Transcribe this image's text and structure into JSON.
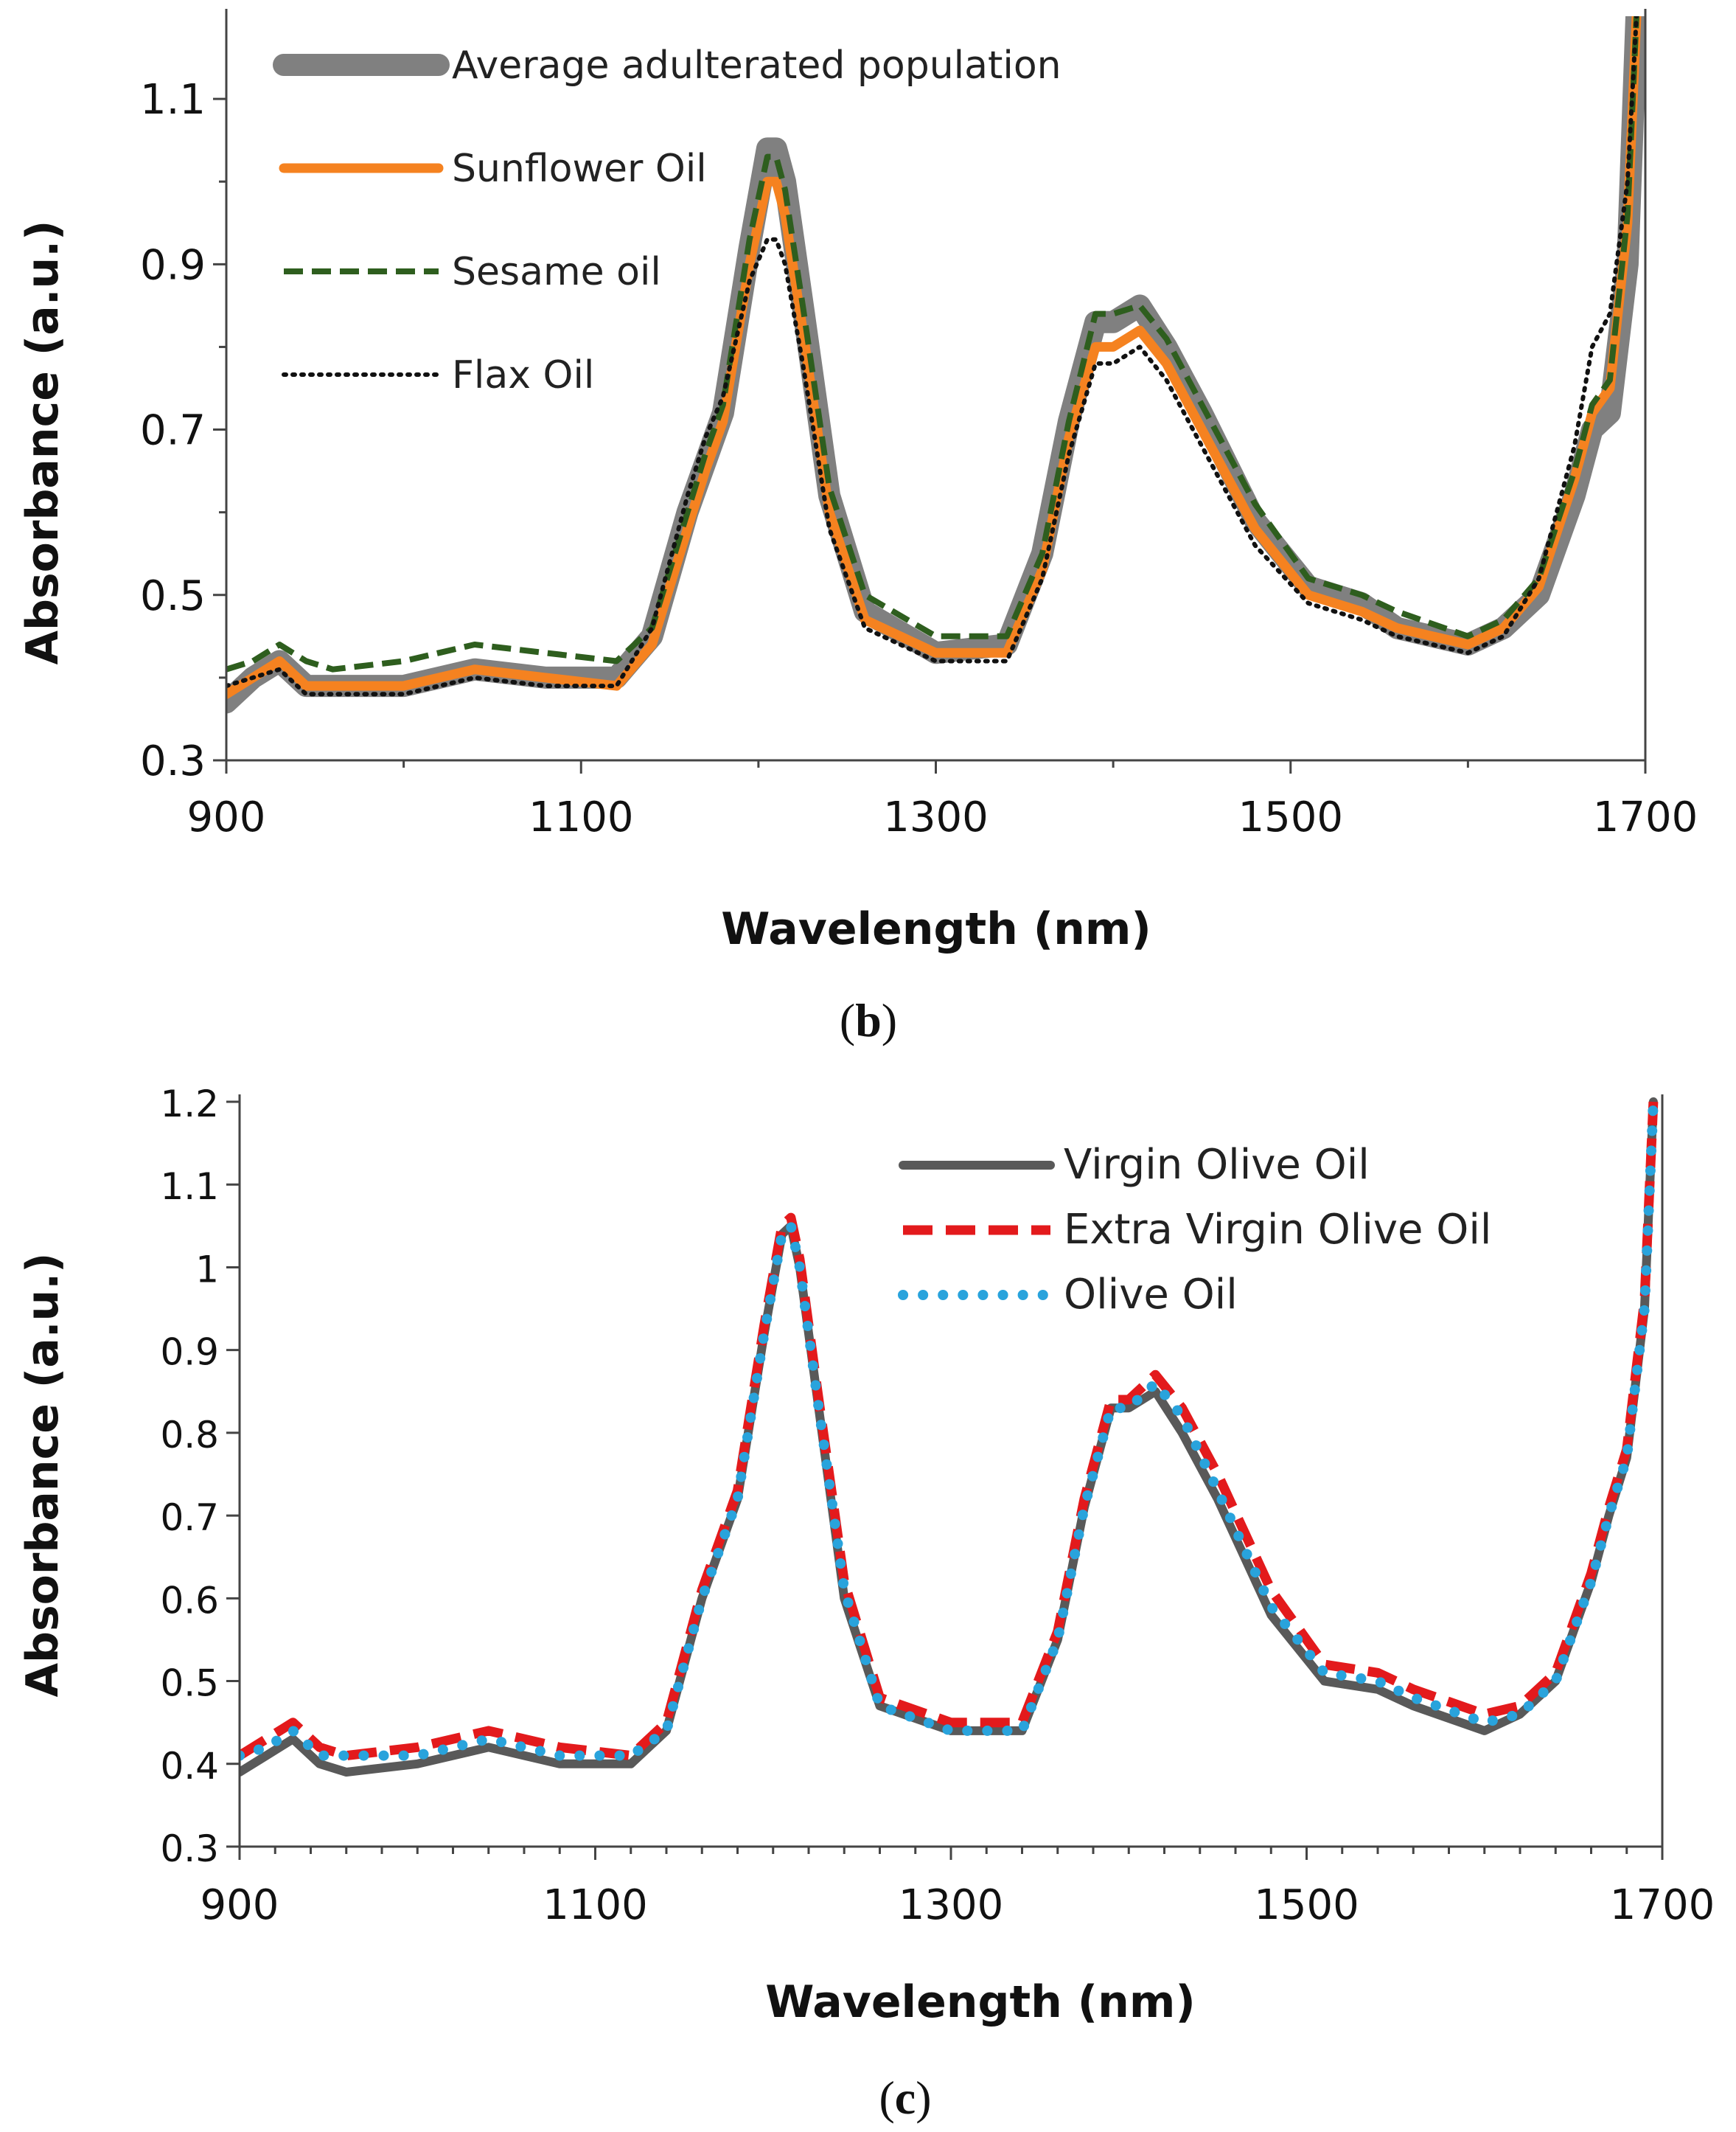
{
  "chart_data": [
    {
      "type": "line",
      "panel_label": "b",
      "xlabel": "Wavelength (nm)",
      "ylabel": "Absorbance (a.u.)",
      "xlim": [
        900,
        1700
      ],
      "ylim": [
        0.3,
        1.2
      ],
      "x_ticks": [
        900,
        1100,
        1300,
        1500,
        1700
      ],
      "y_ticks": [
        0.3,
        0.5,
        0.7,
        0.9,
        1.1
      ],
      "y_tick_labels": [
        "0.3",
        "0.5",
        "0.7",
        "0.9",
        "1.1"
      ],
      "grid": false,
      "legend_position": "top-left",
      "x": [
        900,
        915,
        930,
        945,
        960,
        1000,
        1040,
        1080,
        1120,
        1140,
        1160,
        1170,
        1180,
        1195,
        1205,
        1210,
        1215,
        1225,
        1240,
        1260,
        1300,
        1340,
        1360,
        1375,
        1390,
        1400,
        1415,
        1430,
        1450,
        1480,
        1510,
        1540,
        1560,
        1600,
        1620,
        1640,
        1660,
        1670,
        1680,
        1690,
        1695
      ],
      "series": [
        {
          "name": "Average adulterated population",
          "color": "#808080",
          "style": "thick",
          "values": [
            0.37,
            0.4,
            0.42,
            0.39,
            0.39,
            0.39,
            0.41,
            0.4,
            0.4,
            0.45,
            0.6,
            0.66,
            0.72,
            0.92,
            1.04,
            1.04,
            1.0,
            0.85,
            0.62,
            0.48,
            0.43,
            0.44,
            0.55,
            0.71,
            0.83,
            0.83,
            0.85,
            0.8,
            0.72,
            0.59,
            0.51,
            0.49,
            0.46,
            0.44,
            0.46,
            0.5,
            0.62,
            0.7,
            0.72,
            0.9,
            1.2
          ]
        },
        {
          "name": "Sunflower Oil",
          "color": "#F58220",
          "style": "solid",
          "values": [
            0.38,
            0.4,
            0.42,
            0.39,
            0.39,
            0.39,
            0.41,
            0.4,
            0.39,
            0.44,
            0.58,
            0.65,
            0.71,
            0.9,
            1.0,
            1.0,
            0.96,
            0.82,
            0.6,
            0.47,
            0.43,
            0.43,
            0.53,
            0.69,
            0.8,
            0.8,
            0.82,
            0.78,
            0.7,
            0.58,
            0.5,
            0.48,
            0.46,
            0.44,
            0.46,
            0.51,
            0.64,
            0.72,
            0.75,
            0.95,
            1.2
          ]
        },
        {
          "name": "Sesame oil",
          "color": "#2E5E1E",
          "style": "dashed",
          "values": [
            0.41,
            0.42,
            0.44,
            0.42,
            0.41,
            0.42,
            0.44,
            0.43,
            0.42,
            0.46,
            0.6,
            0.67,
            0.73,
            0.93,
            1.03,
            1.03,
            0.99,
            0.85,
            0.63,
            0.5,
            0.45,
            0.45,
            0.55,
            0.71,
            0.84,
            0.84,
            0.85,
            0.81,
            0.73,
            0.61,
            0.52,
            0.5,
            0.48,
            0.45,
            0.47,
            0.52,
            0.65,
            0.73,
            0.76,
            0.96,
            1.2
          ]
        },
        {
          "name": "Flax Oil",
          "color": "#111111",
          "style": "dotted",
          "values": [
            0.39,
            0.4,
            0.41,
            0.38,
            0.38,
            0.38,
            0.4,
            0.39,
            0.39,
            0.46,
            0.62,
            0.69,
            0.74,
            0.88,
            0.93,
            0.93,
            0.9,
            0.78,
            0.58,
            0.46,
            0.42,
            0.42,
            0.52,
            0.67,
            0.78,
            0.78,
            0.8,
            0.76,
            0.68,
            0.56,
            0.49,
            0.47,
            0.45,
            0.43,
            0.45,
            0.52,
            0.68,
            0.8,
            0.84,
            1.0,
            1.2
          ]
        }
      ]
    },
    {
      "type": "line",
      "panel_label": "c",
      "xlabel": "Wavelength (nm)",
      "ylabel": "Absorbance (a.u.)",
      "xlim": [
        900,
        1700
      ],
      "ylim": [
        0.3,
        1.2
      ],
      "x_ticks": [
        900,
        1100,
        1300,
        1500,
        1700
      ],
      "y_ticks": [
        0.3,
        0.4,
        0.5,
        0.6,
        0.7,
        0.8,
        0.9,
        1.0,
        1.1,
        1.2
      ],
      "y_tick_labels": [
        "0.3",
        "0.4",
        "0.5",
        "0.6",
        "0.7",
        "0.8",
        "0.9",
        "1",
        "1.1",
        "1.2"
      ],
      "grid": false,
      "legend_position": "top-right",
      "x": [
        900,
        915,
        930,
        945,
        960,
        1000,
        1040,
        1080,
        1120,
        1140,
        1160,
        1170,
        1180,
        1195,
        1205,
        1210,
        1215,
        1225,
        1240,
        1260,
        1300,
        1340,
        1360,
        1375,
        1390,
        1400,
        1415,
        1430,
        1450,
        1480,
        1510,
        1540,
        1560,
        1600,
        1620,
        1640,
        1660,
        1670,
        1680,
        1690,
        1695
      ],
      "series": [
        {
          "name": "Virgin Olive Oil",
          "color": "#595959",
          "style": "solid",
          "values": [
            0.39,
            0.41,
            0.43,
            0.4,
            0.39,
            0.4,
            0.42,
            0.4,
            0.4,
            0.44,
            0.6,
            0.66,
            0.72,
            0.92,
            1.04,
            1.05,
            1.0,
            0.84,
            0.6,
            0.47,
            0.44,
            0.44,
            0.55,
            0.71,
            0.83,
            0.83,
            0.85,
            0.8,
            0.72,
            0.58,
            0.5,
            0.49,
            0.47,
            0.44,
            0.46,
            0.5,
            0.62,
            0.7,
            0.77,
            0.95,
            1.2
          ]
        },
        {
          "name": "Extra Virgin Olive Oil",
          "color": "#E31A1C",
          "style": "dashed",
          "values": [
            0.41,
            0.43,
            0.45,
            0.42,
            0.41,
            0.42,
            0.44,
            0.42,
            0.41,
            0.45,
            0.61,
            0.67,
            0.73,
            0.93,
            1.05,
            1.06,
            1.01,
            0.85,
            0.62,
            0.48,
            0.45,
            0.45,
            0.56,
            0.72,
            0.84,
            0.84,
            0.87,
            0.83,
            0.75,
            0.61,
            0.52,
            0.51,
            0.49,
            0.46,
            0.47,
            0.51,
            0.63,
            0.71,
            0.78,
            0.96,
            1.2
          ]
        },
        {
          "name": "Olive Oil",
          "color": "#29A3DC",
          "style": "dotted",
          "values": [
            0.41,
            0.42,
            0.44,
            0.41,
            0.41,
            0.41,
            0.43,
            0.41,
            0.41,
            0.44,
            0.6,
            0.66,
            0.72,
            0.92,
            1.04,
            1.05,
            1.0,
            0.84,
            0.61,
            0.47,
            0.44,
            0.44,
            0.55,
            0.71,
            0.83,
            0.83,
            0.86,
            0.82,
            0.73,
            0.59,
            0.51,
            0.5,
            0.48,
            0.45,
            0.46,
            0.5,
            0.62,
            0.7,
            0.77,
            0.95,
            1.2
          ]
        }
      ]
    }
  ]
}
